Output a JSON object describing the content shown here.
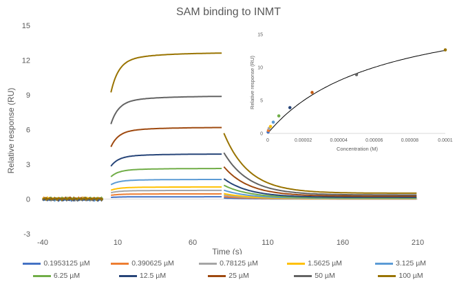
{
  "chart_data": [
    {
      "type": "line",
      "title": "SAM binding to INMT",
      "xlabel": "Time (s)",
      "ylabel": "Relative response (RU)",
      "xlim": [
        -40,
        210
      ],
      "ylim": [
        -3,
        15
      ],
      "xticks": [
        "-40",
        "10",
        "60",
        "110",
        "160",
        "210"
      ],
      "yticks": [
        "-3",
        "0",
        "3",
        "6",
        "9",
        "12",
        "15"
      ],
      "grid": false,
      "legend_position": "bottom",
      "association_start": 5,
      "dissociation_start": 80,
      "series": [
        {
          "name": "0.1953125 µM",
          "color": "#4472C4",
          "plateau": 0.2
        },
        {
          "name": "0.390625 µM",
          "color": "#ED7D31",
          "plateau": 0.45
        },
        {
          "name": "0.78125 µM",
          "color": "#A5A5A5",
          "plateau": 0.75
        },
        {
          "name": "1.5625 µM",
          "color": "#FFC000",
          "plateau": 1.05
        },
        {
          "name": "3.125 µM",
          "color": "#5B9BD5",
          "plateau": 1.7
        },
        {
          "name": "6.25 µM",
          "color": "#70AD47",
          "plateau": 2.65
        },
        {
          "name": "12.5 µM",
          "color": "#264478",
          "plateau": 3.9
        },
        {
          "name": "25 µM",
          "color": "#9E480E",
          "plateau": 6.2
        },
        {
          "name": "50 µM",
          "color": "#636363",
          "plateau": 8.9
        },
        {
          "name": "100 µM",
          "color": "#997300",
          "plateau": 12.65
        }
      ]
    },
    {
      "type": "scatter",
      "xlabel": "Concentration (M)",
      "ylabel": "Relative response (RU)",
      "xlim": [
        0,
        0.0001
      ],
      "ylim": [
        0,
        15
      ],
      "xticks": [
        "0",
        "0.00002",
        "0.00004",
        "0.00006",
        "0.00008",
        "0.0001"
      ],
      "yticks": [
        "0",
        "5",
        "10",
        "15"
      ],
      "grid": false,
      "points": [
        {
          "x": 1.95e-07,
          "y": 0.2,
          "color": "#4472C4"
        },
        {
          "x": 3.9e-07,
          "y": 0.45,
          "color": "#ED7D31"
        },
        {
          "x": 7.8e-07,
          "y": 0.75,
          "color": "#A5A5A5"
        },
        {
          "x": 1.5625e-06,
          "y": 1.05,
          "color": "#FFC000"
        },
        {
          "x": 3.125e-06,
          "y": 1.7,
          "color": "#5B9BD5"
        },
        {
          "x": 6.25e-06,
          "y": 2.65,
          "color": "#70AD47"
        },
        {
          "x": 1.25e-05,
          "y": 3.9,
          "color": "#264478"
        },
        {
          "x": 2.5e-05,
          "y": 6.2,
          "color": "#C55A11"
        },
        {
          "x": 5e-05,
          "y": 8.9,
          "color": "#636363"
        },
        {
          "x": 0.0001,
          "y": 12.65,
          "color": "#997300"
        }
      ],
      "fit": {
        "model": "one-site binding",
        "bmax": 20.5,
        "kd": 6.3e-05,
        "color": "#000000"
      }
    }
  ]
}
